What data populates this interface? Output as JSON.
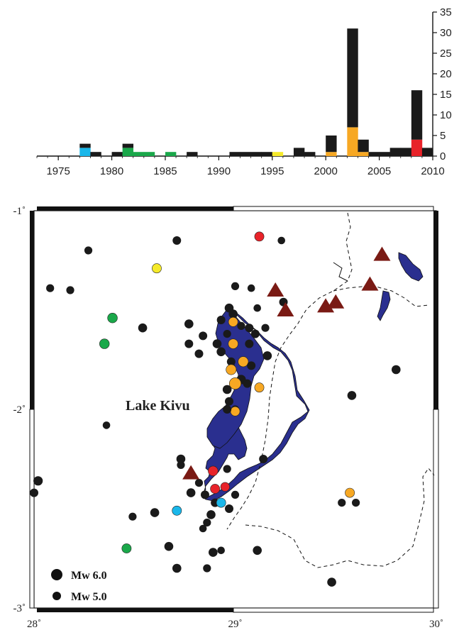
{
  "colors": {
    "other": "#1a1a1a",
    "cyan": "#1ab7ea",
    "green": "#1aa84a",
    "yellow": "#f5ea2a",
    "orange": "#f7a823",
    "red": "#e8232a",
    "lake": "#2a2f8f",
    "volcano": "#7a1a14"
  },
  "chart_data": {
    "type": "bar",
    "stacked": true,
    "xlabel": "",
    "ylabel": "",
    "xlim": [
      1973,
      2010
    ],
    "ylim": [
      0,
      35
    ],
    "x_ticks": [
      1975,
      1980,
      1985,
      1990,
      1995,
      2000,
      2005,
      2010
    ],
    "y_ticks": [
      0,
      5,
      10,
      15,
      20,
      25,
      30,
      35
    ],
    "bars": [
      {
        "year": 1977,
        "segments": [
          {
            "c": "cyan",
            "v": 2
          },
          {
            "c": "other",
            "v": 1
          }
        ]
      },
      {
        "year": 1978,
        "segments": [
          {
            "c": "other",
            "v": 1
          }
        ]
      },
      {
        "year": 1980,
        "segments": [
          {
            "c": "other",
            "v": 1
          }
        ]
      },
      {
        "year": 1981,
        "segments": [
          {
            "c": "green",
            "v": 2
          },
          {
            "c": "other",
            "v": 1
          }
        ]
      },
      {
        "year": 1982,
        "segments": [
          {
            "c": "green",
            "v": 1
          }
        ]
      },
      {
        "year": 1983,
        "segments": [
          {
            "c": "green",
            "v": 1
          }
        ]
      },
      {
        "year": 1985,
        "segments": [
          {
            "c": "green",
            "v": 1
          }
        ]
      },
      {
        "year": 1987,
        "segments": [
          {
            "c": "other",
            "v": 1
          }
        ]
      },
      {
        "year": 1991,
        "segments": [
          {
            "c": "other",
            "v": 1
          }
        ]
      },
      {
        "year": 1992,
        "segments": [
          {
            "c": "other",
            "v": 1
          }
        ]
      },
      {
        "year": 1993,
        "segments": [
          {
            "c": "other",
            "v": 1
          }
        ]
      },
      {
        "year": 1994,
        "segments": [
          {
            "c": "other",
            "v": 1
          }
        ]
      },
      {
        "year": 1995,
        "segments": [
          {
            "c": "yellow",
            "v": 1
          }
        ]
      },
      {
        "year": 1997,
        "segments": [
          {
            "c": "other",
            "v": 2
          }
        ]
      },
      {
        "year": 1998,
        "segments": [
          {
            "c": "other",
            "v": 1
          }
        ]
      },
      {
        "year": 2000,
        "segments": [
          {
            "c": "orange",
            "v": 1
          },
          {
            "c": "other",
            "v": 4
          }
        ]
      },
      {
        "year": 2002,
        "segments": [
          {
            "c": "orange",
            "v": 7
          },
          {
            "c": "other",
            "v": 24
          }
        ]
      },
      {
        "year": 2003,
        "segments": [
          {
            "c": "orange",
            "v": 1
          },
          {
            "c": "other",
            "v": 3
          }
        ]
      },
      {
        "year": 2004,
        "segments": [
          {
            "c": "other",
            "v": 1
          }
        ]
      },
      {
        "year": 2005,
        "segments": [
          {
            "c": "other",
            "v": 1
          }
        ]
      },
      {
        "year": 2006,
        "segments": [
          {
            "c": "other",
            "v": 2
          }
        ]
      },
      {
        "year": 2007,
        "segments": [
          {
            "c": "other",
            "v": 2
          }
        ]
      },
      {
        "year": 2008,
        "segments": [
          {
            "c": "red",
            "v": 4
          },
          {
            "c": "other",
            "v": 12
          }
        ]
      },
      {
        "year": 2009,
        "segments": [
          {
            "c": "other",
            "v": 2
          }
        ]
      }
    ]
  },
  "map": {
    "lon_range": [
      28.0,
      30.0
    ],
    "lat_range": [
      -3.0,
      -1.0
    ],
    "lon_ticks": [
      {
        "value": 28.0,
        "label": "28˚"
      },
      {
        "value": 29.0,
        "label": "29˚"
      },
      {
        "value": 30.0,
        "label": "30˚"
      }
    ],
    "lat_ticks": [
      {
        "value": -1.0,
        "label": "-1˚"
      },
      {
        "value": -2.0,
        "label": "-2˚"
      },
      {
        "value": -3.0,
        "label": "-3˚"
      }
    ],
    "lake_label": "Lake Kivu",
    "legend": [
      {
        "label": "Mw 6.0",
        "size": "large"
      },
      {
        "label": "Mw 5.0",
        "size": "small"
      }
    ],
    "events": [
      {
        "lon": 28.27,
        "lat": -1.2,
        "c": "other",
        "m": 5.2
      },
      {
        "lon": 28.71,
        "lat": -1.15,
        "c": "other",
        "m": 5.3
      },
      {
        "lon": 29.23,
        "lat": -1.15,
        "c": "other",
        "m": 5.1
      },
      {
        "lon": 29.12,
        "lat": -1.13,
        "c": "red",
        "m": 5.5
      },
      {
        "lon": 28.61,
        "lat": -1.29,
        "c": "yellow",
        "m": 5.5
      },
      {
        "lon": 28.08,
        "lat": -1.39,
        "c": "other",
        "m": 5.2
      },
      {
        "lon": 28.18,
        "lat": -1.4,
        "c": "other",
        "m": 5.2
      },
      {
        "lon": 29.0,
        "lat": -1.38,
        "c": "other",
        "m": 5.2
      },
      {
        "lon": 29.08,
        "lat": -1.39,
        "c": "other",
        "m": 5.1
      },
      {
        "lon": 28.39,
        "lat": -1.54,
        "c": "green",
        "m": 5.6
      },
      {
        "lon": 28.35,
        "lat": -1.67,
        "c": "green",
        "m": 5.6
      },
      {
        "lon": 28.54,
        "lat": -1.59,
        "c": "other",
        "m": 5.4
      },
      {
        "lon": 28.97,
        "lat": -1.49,
        "c": "other",
        "m": 5.4
      },
      {
        "lon": 29.11,
        "lat": -1.49,
        "c": "other",
        "m": 5.1
      },
      {
        "lon": 29.24,
        "lat": -1.46,
        "c": "other",
        "m": 5.3
      },
      {
        "lon": 28.77,
        "lat": -1.57,
        "c": "other",
        "m": 5.4
      },
      {
        "lon": 28.77,
        "lat": -1.67,
        "c": "other",
        "m": 5.3
      },
      {
        "lon": 28.84,
        "lat": -1.63,
        "c": "other",
        "m": 5.3
      },
      {
        "lon": 28.99,
        "lat": -1.52,
        "c": "other",
        "m": 5.4
      },
      {
        "lon": 28.93,
        "lat": -1.55,
        "c": "other",
        "m": 5.3
      },
      {
        "lon": 28.99,
        "lat": -1.56,
        "c": "orange",
        "m": 5.5
      },
      {
        "lon": 29.03,
        "lat": -1.58,
        "c": "other",
        "m": 5.2
      },
      {
        "lon": 29.07,
        "lat": -1.59,
        "c": "other",
        "m": 5.3
      },
      {
        "lon": 29.15,
        "lat": -1.59,
        "c": "other",
        "m": 5.2
      },
      {
        "lon": 28.96,
        "lat": -1.62,
        "c": "other",
        "m": 5.2
      },
      {
        "lon": 29.1,
        "lat": -1.62,
        "c": "other",
        "m": 5.3
      },
      {
        "lon": 28.91,
        "lat": -1.67,
        "c": "other",
        "m": 5.4
      },
      {
        "lon": 28.99,
        "lat": -1.67,
        "c": "orange",
        "m": 5.6
      },
      {
        "lon": 29.07,
        "lat": -1.67,
        "c": "other",
        "m": 5.3
      },
      {
        "lon": 28.93,
        "lat": -1.71,
        "c": "other",
        "m": 5.4
      },
      {
        "lon": 28.82,
        "lat": -1.72,
        "c": "other",
        "m": 5.3
      },
      {
        "lon": 29.16,
        "lat": -1.73,
        "c": "other",
        "m": 5.4
      },
      {
        "lon": 28.98,
        "lat": -1.76,
        "c": "other",
        "m": 5.3
      },
      {
        "lon": 29.04,
        "lat": -1.76,
        "c": "orange",
        "m": 5.7
      },
      {
        "lon": 29.08,
        "lat": -1.78,
        "c": "other",
        "m": 5.3
      },
      {
        "lon": 28.98,
        "lat": -1.8,
        "c": "orange",
        "m": 5.7
      },
      {
        "lon": 29.03,
        "lat": -1.85,
        "c": "other",
        "m": 5.5
      },
      {
        "lon": 29.06,
        "lat": -1.87,
        "c": "other",
        "m": 5.3
      },
      {
        "lon": 29.0,
        "lat": -1.87,
        "c": "orange",
        "m": 6.0
      },
      {
        "lon": 28.96,
        "lat": -1.9,
        "c": "other",
        "m": 5.4
      },
      {
        "lon": 29.12,
        "lat": -1.89,
        "c": "orange",
        "m": 5.5
      },
      {
        "lon": 28.97,
        "lat": -1.96,
        "c": "other",
        "m": 5.3
      },
      {
        "lon": 29.0,
        "lat": -2.0,
        "c": "other",
        "m": 5.2
      },
      {
        "lon": 29.0,
        "lat": -2.01,
        "c": "orange",
        "m": 5.5
      },
      {
        "lon": 28.96,
        "lat": -2.0,
        "c": "other",
        "m": 5.3
      },
      {
        "lon": 28.36,
        "lat": -2.08,
        "c": "other",
        "m": 5.1
      },
      {
        "lon": 28.73,
        "lat": -2.25,
        "c": "other",
        "m": 5.4
      },
      {
        "lon": 28.73,
        "lat": -2.28,
        "c": "other",
        "m": 5.2
      },
      {
        "lon": 29.14,
        "lat": -2.25,
        "c": "other",
        "m": 5.3
      },
      {
        "lon": 28.89,
        "lat": -2.31,
        "c": "red",
        "m": 5.6
      },
      {
        "lon": 28.96,
        "lat": -2.3,
        "c": "other",
        "m": 5.2
      },
      {
        "lon": 28.82,
        "lat": -2.37,
        "c": "other",
        "m": 5.2
      },
      {
        "lon": 28.78,
        "lat": -2.42,
        "c": "other",
        "m": 5.4
      },
      {
        "lon": 28.9,
        "lat": -2.4,
        "c": "red",
        "m": 5.5
      },
      {
        "lon": 28.95,
        "lat": -2.39,
        "c": "red",
        "m": 5.4
      },
      {
        "lon": 28.85,
        "lat": -2.43,
        "c": "other",
        "m": 5.3
      },
      {
        "lon": 29.0,
        "lat": -2.43,
        "c": "other",
        "m": 5.2
      },
      {
        "lon": 28.9,
        "lat": -2.47,
        "c": "other",
        "m": 5.3
      },
      {
        "lon": 28.93,
        "lat": -2.47,
        "c": "cyan",
        "m": 5.5
      },
      {
        "lon": 28.97,
        "lat": -2.5,
        "c": "other",
        "m": 5.3
      },
      {
        "lon": 28.88,
        "lat": -2.53,
        "c": "other",
        "m": 5.4
      },
      {
        "lon": 28.86,
        "lat": -2.57,
        "c": "other",
        "m": 5.2
      },
      {
        "lon": 28.84,
        "lat": -2.6,
        "c": "other",
        "m": 5.1
      },
      {
        "lon": 28.71,
        "lat": -2.51,
        "c": "cyan",
        "m": 5.5
      },
      {
        "lon": 28.6,
        "lat": -2.52,
        "c": "other",
        "m": 5.4
      },
      {
        "lon": 28.49,
        "lat": -2.54,
        "c": "other",
        "m": 5.2
      },
      {
        "lon": 28.46,
        "lat": -2.7,
        "c": "green",
        "m": 5.5
      },
      {
        "lon": 28.67,
        "lat": -2.69,
        "c": "other",
        "m": 5.4
      },
      {
        "lon": 28.89,
        "lat": -2.72,
        "c": "other",
        "m": 5.4
      },
      {
        "lon": 28.93,
        "lat": -2.71,
        "c": "other",
        "m": 5.1
      },
      {
        "lon": 29.11,
        "lat": -2.71,
        "c": "other",
        "m": 5.4
      },
      {
        "lon": 28.71,
        "lat": -2.8,
        "c": "other",
        "m": 5.4
      },
      {
        "lon": 28.86,
        "lat": -2.8,
        "c": "other",
        "m": 5.2
      },
      {
        "lon": 28.02,
        "lat": -2.36,
        "c": "other",
        "m": 5.5
      },
      {
        "lon": 28.0,
        "lat": -2.42,
        "c": "other",
        "m": 5.3
      },
      {
        "lon": 29.57,
        "lat": -2.42,
        "c": "orange",
        "m": 5.5
      },
      {
        "lon": 29.53,
        "lat": -2.47,
        "c": "other",
        "m": 5.2
      },
      {
        "lon": 29.6,
        "lat": -2.47,
        "c": "other",
        "m": 5.2
      },
      {
        "lon": 29.58,
        "lat": -1.93,
        "c": "other",
        "m": 5.4
      },
      {
        "lon": 29.8,
        "lat": -1.8,
        "c": "other",
        "m": 5.4
      },
      {
        "lon": 29.48,
        "lat": -2.87,
        "c": "other",
        "m": 5.4
      }
    ],
    "volcanoes": [
      {
        "lon": 29.2,
        "lat": -1.4
      },
      {
        "lon": 29.25,
        "lat": -1.5
      },
      {
        "lon": 29.45,
        "lat": -1.48
      },
      {
        "lon": 29.5,
        "lat": -1.46
      },
      {
        "lon": 29.67,
        "lat": -1.37
      },
      {
        "lon": 29.73,
        "lat": -1.22
      },
      {
        "lon": 28.78,
        "lat": -2.32
      }
    ]
  }
}
